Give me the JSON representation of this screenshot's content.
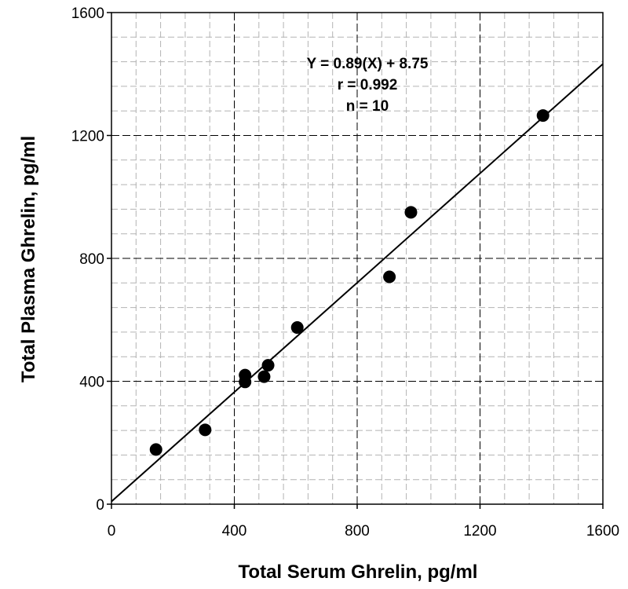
{
  "chart_data": {
    "type": "scatter",
    "xlabel": "Total Serum Ghrelin, pg/ml",
    "ylabel": "Total Plasma Ghrelin, pg/ml",
    "xlim": [
      0,
      1600
    ],
    "ylim": [
      0,
      1600
    ],
    "x_ticks": [
      0,
      400,
      800,
      1200,
      1600
    ],
    "y_ticks": [
      0,
      400,
      800,
      1200,
      1600
    ],
    "x_tick_labels": [
      "0",
      "400",
      "800",
      "1200",
      "1600"
    ],
    "y_tick_labels": [
      "0",
      "400",
      "800",
      "1200",
      "1600"
    ],
    "grid": true,
    "points": [
      {
        "x": 145,
        "y": 178
      },
      {
        "x": 305,
        "y": 242
      },
      {
        "x": 435,
        "y": 398
      },
      {
        "x": 435,
        "y": 420
      },
      {
        "x": 497,
        "y": 415
      },
      {
        "x": 510,
        "y": 452
      },
      {
        "x": 605,
        "y": 575
      },
      {
        "x": 905,
        "y": 740
      },
      {
        "x": 975,
        "y": 950
      },
      {
        "x": 1405,
        "y": 1265
      }
    ],
    "fit_line": {
      "slope": 0.89,
      "intercept": 8.75
    },
    "annotations": [
      "Y = 0.89(X) + 8.75",
      "r = 0.992",
      "n = 10"
    ],
    "colors": {
      "points": "#000000",
      "line": "#000000",
      "major_grid": "#000000",
      "minor_grid": "#b3b3b3"
    }
  }
}
